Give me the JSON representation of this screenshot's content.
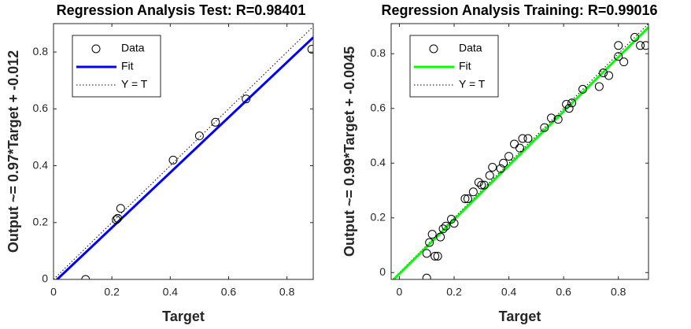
{
  "chart_data": [
    {
      "type": "scatter",
      "title": "Regression Analysis Test: R=0.98401",
      "xlabel": "Target",
      "ylabel": "Output ~= 0.97*Target + -0.012",
      "xlim": [
        0,
        0.89
      ],
      "ylim": [
        0,
        0.9
      ],
      "xticks": [
        0,
        0.2,
        0.4,
        0.6,
        0.8
      ],
      "yticks": [
        0,
        0.2,
        0.4,
        0.6,
        0.8
      ],
      "legend": "upper left",
      "series": [
        {
          "name": "Data",
          "style": "marker",
          "color": "#000000",
          "x": [
            0.11,
            0.215,
            0.22,
            0.23,
            0.41,
            0.5,
            0.555,
            0.66,
            0.885
          ],
          "values": [
            0,
            0.21,
            0.215,
            0.25,
            0.42,
            0.505,
            0.553,
            0.635,
            0.81
          ]
        },
        {
          "name": "Fit",
          "style": "solid",
          "color": "#0000ff",
          "x": [
            0,
            0.89
          ],
          "values": [
            -0.012,
            0.8513
          ]
        },
        {
          "name": "Y = T",
          "style": "dotted",
          "color": "#000000",
          "x": [
            0,
            0.89
          ],
          "values": [
            0,
            0.89
          ]
        }
      ]
    },
    {
      "type": "scatter",
      "title": "Regression Analysis Training: R=0.99016",
      "xlabel": "Target",
      "ylabel": "Output ~= 0.99*Target + -0.0045",
      "xlim": [
        -0.03,
        0.91
      ],
      "ylim": [
        -0.025,
        0.91
      ],
      "xticks": [
        0,
        0.2,
        0.4,
        0.6,
        0.8
      ],
      "yticks": [
        0,
        0.2,
        0.4,
        0.6,
        0.8
      ],
      "legend": "upper left",
      "series": [
        {
          "name": "Data",
          "style": "marker",
          "color": "#000000",
          "x": [
            0.1,
            0.1,
            0.11,
            0.12,
            0.13,
            0.14,
            0.15,
            0.16,
            0.17,
            0.19,
            0.2,
            0.24,
            0.25,
            0.27,
            0.29,
            0.3,
            0.31,
            0.33,
            0.34,
            0.37,
            0.38,
            0.4,
            0.42,
            0.44,
            0.45,
            0.47,
            0.53,
            0.555,
            0.58,
            0.61,
            0.62,
            0.63,
            0.67,
            0.73,
            0.745,
            0.765,
            0.8,
            0.8,
            0.82,
            0.86,
            0.88,
            0.9
          ],
          "values": [
            -0.02,
            0.07,
            0.11,
            0.14,
            0.06,
            0.06,
            0.13,
            0.16,
            0.17,
            0.195,
            0.18,
            0.27,
            0.27,
            0.295,
            0.33,
            0.32,
            0.32,
            0.355,
            0.385,
            0.38,
            0.4,
            0.425,
            0.47,
            0.455,
            0.49,
            0.49,
            0.53,
            0.565,
            0.56,
            0.615,
            0.6,
            0.62,
            0.67,
            0.68,
            0.73,
            0.72,
            0.79,
            0.83,
            0.77,
            0.86,
            0.83,
            0.83
          ]
        },
        {
          "name": "Fit",
          "style": "solid",
          "color": "#00ff00",
          "x": [
            -0.03,
            0.91
          ],
          "values": [
            -0.0342,
            0.8964
          ]
        },
        {
          "name": "Y = T",
          "style": "dotted",
          "color": "#000000",
          "x": [
            -0.03,
            0.91
          ],
          "values": [
            -0.03,
            0.91
          ]
        }
      ]
    }
  ]
}
